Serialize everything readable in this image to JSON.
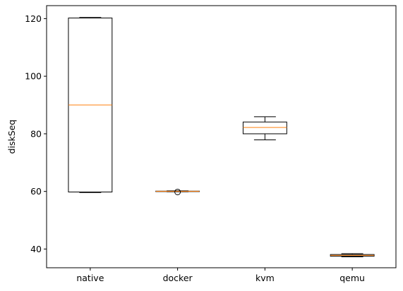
{
  "chart_data": {
    "type": "box",
    "title": "",
    "xlabel": "",
    "ylabel": "diskSeq",
    "ylim": [
      33.5,
      124.5
    ],
    "yticks": [
      40,
      60,
      80,
      100,
      120
    ],
    "categories": [
      "native",
      "docker",
      "kvm",
      "qemu"
    ],
    "boxes": [
      {
        "name": "native",
        "whisker_low": 59.6,
        "q1": 59.8,
        "median": 90.0,
        "q3": 120.2,
        "whisker_high": 120.4,
        "outliers": []
      },
      {
        "name": "docker",
        "whisker_low": 59.9,
        "q1": 59.95,
        "median": 60.05,
        "q3": 60.1,
        "whisker_high": 60.2,
        "outliers": [
          59.8
        ]
      },
      {
        "name": "kvm",
        "whisker_low": 77.9,
        "q1": 80.0,
        "median": 82.2,
        "q3": 84.1,
        "whisker_high": 85.9,
        "outliers": []
      },
      {
        "name": "qemu",
        "whisker_low": 37.3,
        "q1": 37.5,
        "median": 37.8,
        "q3": 38.1,
        "whisker_high": 38.4,
        "outliers": []
      }
    ],
    "colors": {
      "box": "#000000",
      "median": "#ff7f0e",
      "axes": "#000000",
      "background": "#ffffff"
    },
    "grid": false,
    "legend": "none"
  }
}
